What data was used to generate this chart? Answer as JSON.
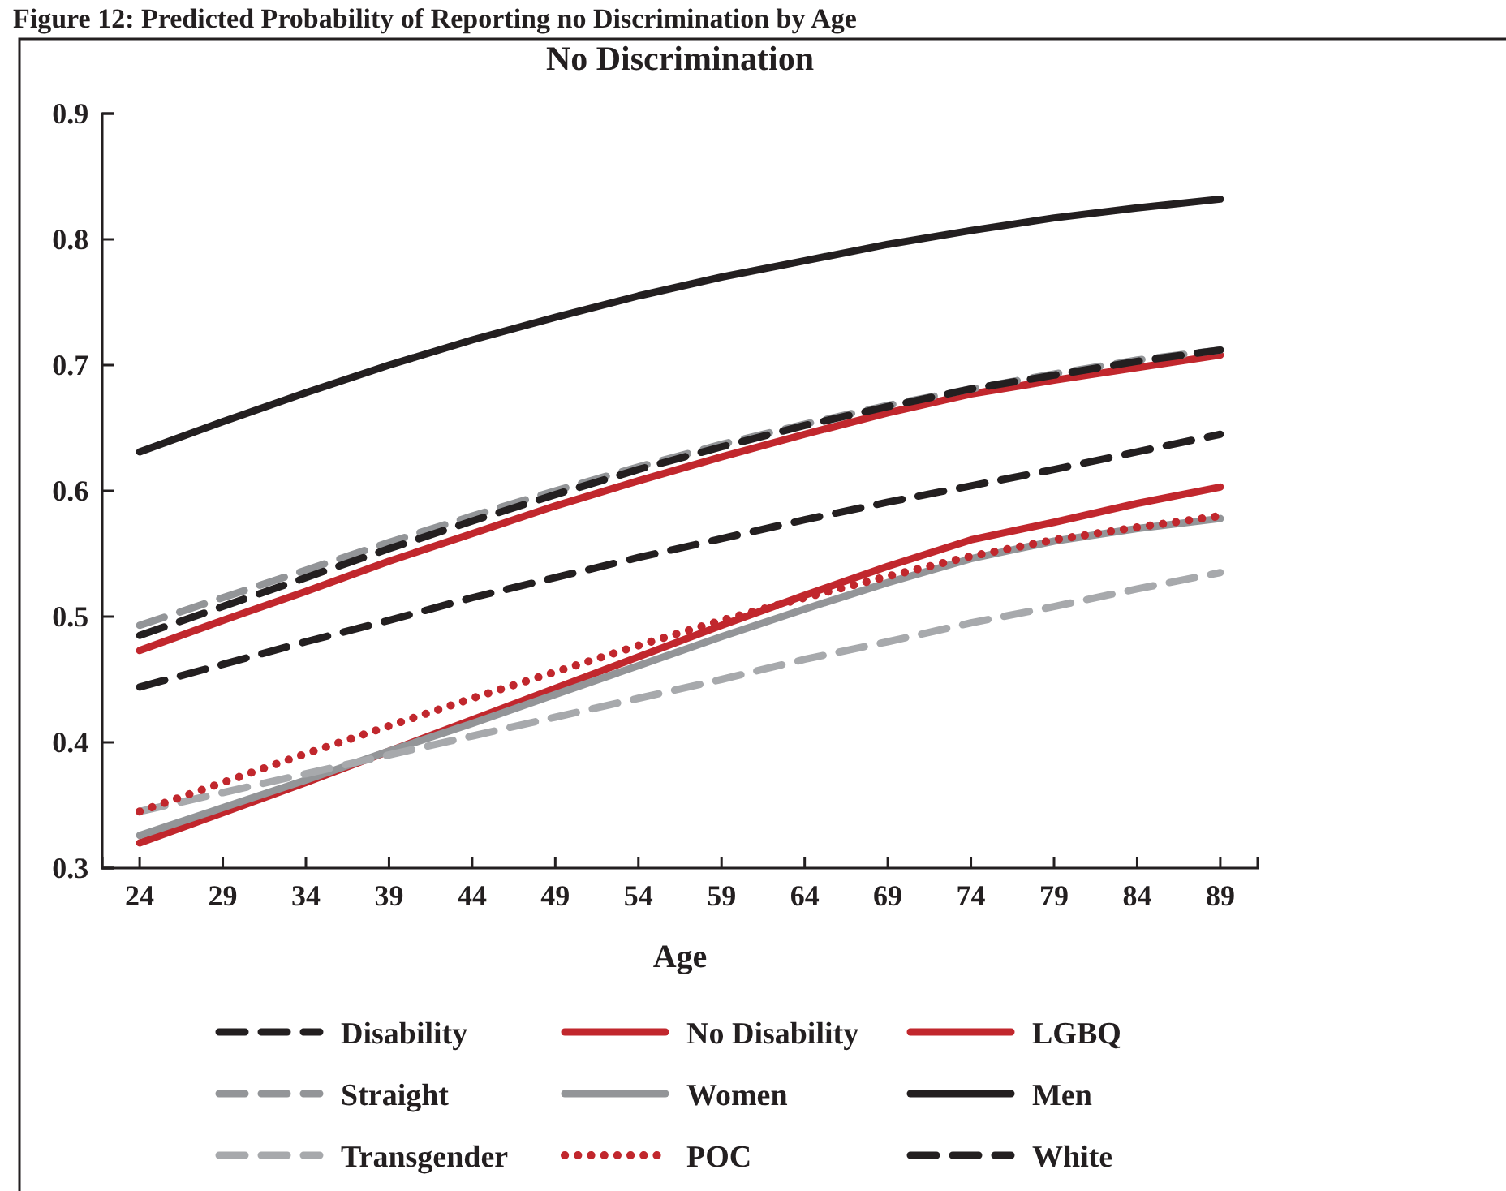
{
  "chart_data": {
    "type": "line",
    "title": "Figure 12: Predicted Probability of Reporting no Discrimination by Age",
    "subtitle": "No Discrimination",
    "xlabel": "Age",
    "x": [
      24,
      29,
      34,
      39,
      44,
      49,
      54,
      59,
      64,
      69,
      74,
      79,
      84,
      89
    ],
    "xlim": [
      21.75,
      91.25
    ],
    "xticks": [
      24,
      29,
      34,
      39,
      44,
      49,
      54,
      59,
      64,
      69,
      74,
      79,
      84,
      89
    ],
    "ylim": [
      0.3,
      0.9
    ],
    "yticks": [
      0.3,
      0.4,
      0.5,
      0.6,
      0.7,
      0.8,
      0.9
    ],
    "grid": false,
    "legend": "bottom",
    "marker": "none",
    "series": [
      {
        "name": "Disability",
        "color": "#231f20",
        "line_style": "dashed",
        "values": [
          0.444,
          0.462,
          0.48,
          0.497,
          0.515,
          0.531,
          0.547,
          0.562,
          0.577,
          0.591,
          0.604,
          0.617,
          0.631,
          0.645
        ]
      },
      {
        "name": "No Disability",
        "color": "#c1272d",
        "line_style": "solid",
        "values": [
          0.473,
          0.497,
          0.52,
          0.544,
          0.566,
          0.588,
          0.608,
          0.627,
          0.645,
          0.662,
          0.677,
          0.688,
          0.698,
          0.708
        ]
      },
      {
        "name": "LGBQ",
        "color": "#c1272d",
        "line_style": "solid",
        "values": [
          0.32,
          0.344,
          0.368,
          0.393,
          0.418,
          0.443,
          0.468,
          0.493,
          0.517,
          0.54,
          0.561,
          0.575,
          0.59,
          0.603
        ]
      },
      {
        "name": "Straight",
        "color": "#939598",
        "line_style": "dashed",
        "values": [
          0.493,
          0.515,
          0.537,
          0.559,
          0.58,
          0.6,
          0.619,
          0.637,
          0.653,
          0.668,
          0.681,
          0.693,
          0.704,
          0.712
        ]
      },
      {
        "name": "Women",
        "color": "#939598",
        "line_style": "solid",
        "values": [
          0.326,
          0.348,
          0.37,
          0.393,
          0.415,
          0.438,
          0.461,
          0.484,
          0.506,
          0.527,
          0.546,
          0.56,
          0.57,
          0.578
        ]
      },
      {
        "name": "Men",
        "color": "#231f20",
        "line_style": "solid",
        "values": [
          0.631,
          0.655,
          0.678,
          0.7,
          0.72,
          0.738,
          0.755,
          0.77,
          0.783,
          0.796,
          0.807,
          0.817,
          0.825,
          0.832
        ]
      },
      {
        "name": "Transgender",
        "color": "#a7a9ac",
        "line_style": "dashed",
        "values": [
          0.345,
          0.36,
          0.375,
          0.39,
          0.405,
          0.42,
          0.435,
          0.45,
          0.466,
          0.48,
          0.495,
          0.508,
          0.522,
          0.535
        ]
      },
      {
        "name": "POC",
        "color": "#c1272d",
        "line_style": "dotted",
        "values": [
          0.345,
          0.368,
          0.391,
          0.413,
          0.435,
          0.456,
          0.477,
          0.497,
          0.515,
          0.532,
          0.548,
          0.561,
          0.571,
          0.58
        ]
      },
      {
        "name": "White",
        "color": "#231f20",
        "line_style": "dashed",
        "values": [
          0.485,
          0.508,
          0.531,
          0.554,
          0.576,
          0.597,
          0.617,
          0.635,
          0.652,
          0.667,
          0.681,
          0.692,
          0.703,
          0.712
        ]
      }
    ]
  }
}
